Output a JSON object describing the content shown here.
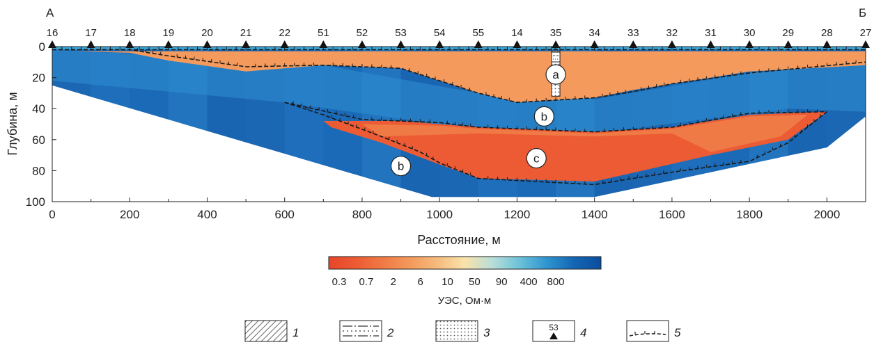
{
  "chart_data": {
    "type": "heatmap",
    "corner_labels": {
      "left": "А",
      "right": "Б"
    },
    "xlabel": "Расстояние, м",
    "ylabel": "Глубина, м",
    "xlim": [
      0,
      2100
    ],
    "ylim": [
      100,
      0
    ],
    "xticks": [
      0,
      200,
      400,
      600,
      800,
      1000,
      1200,
      1400,
      1600,
      1800,
      2000
    ],
    "yticks": [
      0,
      20,
      40,
      60,
      80,
      100
    ],
    "stations": [
      {
        "label": "16",
        "x": 0
      },
      {
        "label": "17",
        "x": 100
      },
      {
        "label": "18",
        "x": 200
      },
      {
        "label": "19",
        "x": 300
      },
      {
        "label": "20",
        "x": 400
      },
      {
        "label": "21",
        "x": 500
      },
      {
        "label": "22",
        "x": 600
      },
      {
        "label": "51",
        "x": 700
      },
      {
        "label": "52",
        "x": 800
      },
      {
        "label": "53",
        "x": 900
      },
      {
        "label": "54",
        "x": 1000
      },
      {
        "label": "55",
        "x": 1100
      },
      {
        "label": "14",
        "x": 1200
      },
      {
        "label": "35",
        "x": 1300
      },
      {
        "label": "34",
        "x": 1400
      },
      {
        "label": "33",
        "x": 1500
      },
      {
        "label": "32",
        "x": 1600
      },
      {
        "label": "31",
        "x": 1700
      },
      {
        "label": "30",
        "x": 1800
      },
      {
        "label": "29",
        "x": 1900
      },
      {
        "label": "28",
        "x": 2000
      },
      {
        "label": "27",
        "x": 2100
      }
    ],
    "section_outline": [
      [
        0,
        0
      ],
      [
        2100,
        0
      ],
      [
        2100,
        45
      ],
      [
        2000,
        65
      ],
      [
        1400,
        97
      ],
      [
        980,
        97
      ],
      [
        0,
        25
      ]
    ],
    "zones": [
      {
        "label": "a",
        "class": "low",
        "x": 1300,
        "y": 18,
        "polygon": [
          [
            50,
            3
          ],
          [
            2100,
            3
          ],
          [
            2100,
            12
          ],
          [
            1800,
            16
          ],
          [
            1600,
            24
          ],
          [
            1500,
            28
          ],
          [
            1400,
            33
          ],
          [
            1200,
            36
          ],
          [
            1100,
            30
          ],
          [
            900,
            14
          ],
          [
            700,
            12
          ],
          [
            500,
            16
          ],
          [
            300,
            9
          ],
          [
            200,
            4
          ],
          [
            50,
            3
          ]
        ]
      },
      {
        "label": "c",
        "class": "low",
        "x": 1250,
        "y": 72,
        "polygon": [
          [
            700,
            48
          ],
          [
            900,
            48
          ],
          [
            1100,
            52
          ],
          [
            1400,
            55
          ],
          [
            1600,
            52
          ],
          [
            1800,
            44
          ],
          [
            2000,
            42
          ],
          [
            1900,
            60
          ],
          [
            1700,
            70
          ],
          [
            1400,
            87
          ],
          [
            1100,
            85
          ],
          [
            1000,
            76
          ],
          [
            850,
            62
          ],
          [
            720,
            52
          ]
        ]
      },
      {
        "label": "b",
        "class": "high",
        "x": 1270,
        "y": 45,
        "polygon": []
      },
      {
        "label": "b",
        "class": "high",
        "x": 900,
        "y": 77,
        "polygon": []
      }
    ],
    "boundaries": [
      [
        [
          0,
          2
        ],
        [
          200,
          2
        ],
        [
          300,
          6
        ],
        [
          500,
          13
        ],
        [
          700,
          12
        ],
        [
          900,
          14
        ],
        [
          1100,
          30
        ],
        [
          1200,
          36
        ],
        [
          1400,
          33
        ],
        [
          1500,
          29
        ],
        [
          1600,
          24
        ],
        [
          1800,
          17
        ],
        [
          2100,
          10
        ]
      ],
      [
        [
          0,
          2
        ],
        [
          2100,
          2
        ]
      ],
      [
        [
          600,
          36
        ],
        [
          800,
          47
        ],
        [
          1000,
          49
        ],
        [
          1100,
          52
        ],
        [
          1400,
          55
        ],
        [
          1600,
          52
        ],
        [
          1800,
          43
        ],
        [
          2000,
          42
        ]
      ],
      [
        [
          600,
          36
        ],
        [
          700,
          44
        ],
        [
          850,
          58
        ],
        [
          950,
          68
        ],
        [
          1000,
          75
        ],
        [
          1100,
          85
        ],
        [
          1400,
          89
        ],
        [
          1600,
          81
        ],
        [
          1800,
          74
        ],
        [
          1900,
          62
        ],
        [
          2000,
          42
        ]
      ]
    ],
    "borehole": {
      "x": 1300,
      "top": 0,
      "bottom": 32
    },
    "colorbar": {
      "label": "УЭС, Ом·м",
      "tick_labels": [
        "0.3",
        "0.7",
        "2",
        "6",
        "10",
        "50",
        "90",
        "400",
        "800"
      ],
      "colors": [
        "#e8452a",
        "#ec5b34",
        "#f07a45",
        "#f39a5c",
        "#f6bb7e",
        "#f9e3ab",
        "#b9ded8",
        "#6cc2d8",
        "#2f95d0",
        "#1466b4",
        "#0c4d9d"
      ]
    },
    "legend": [
      {
        "number": "1"
      },
      {
        "number": "2"
      },
      {
        "number": "3"
      },
      {
        "number": "4",
        "station_label": "53"
      },
      {
        "number": "5"
      }
    ]
  }
}
